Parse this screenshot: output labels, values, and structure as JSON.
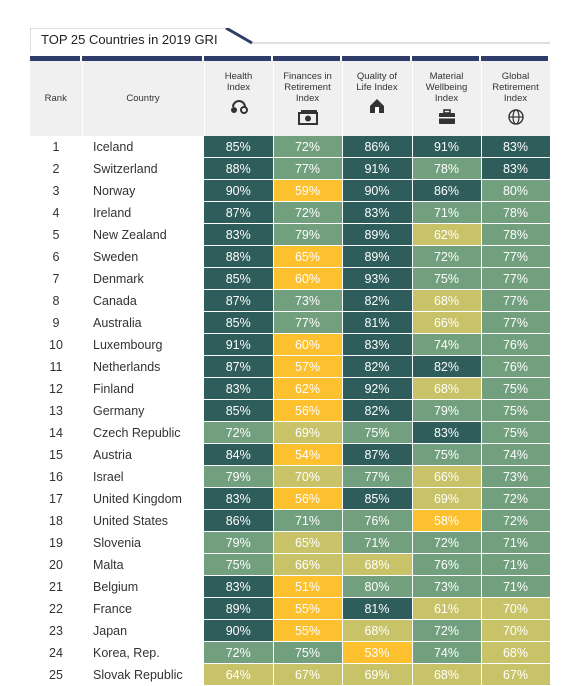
{
  "title": "TOP 25 Countries in 2019 GRI",
  "columns": {
    "rank": "Rank",
    "country": "Country",
    "metrics": [
      {
        "label": [
          "Health",
          "Index"
        ],
        "icon": "health-icon"
      },
      {
        "label": [
          "Finances in",
          "Retirement",
          "Index"
        ],
        "icon": "money-icon"
      },
      {
        "label": [
          "Quality of",
          "Life Index"
        ],
        "icon": "house-icon"
      },
      {
        "label": [
          "Material",
          "Wellbeing",
          "Index"
        ],
        "icon": "briefcase-icon"
      },
      {
        "label": [
          "Global",
          "Retirement",
          "Index"
        ],
        "icon": "globe-icon"
      }
    ]
  },
  "colors": {
    "dark": "#2e5d5b",
    "mid": "#72a07f",
    "olive": "#c8c368",
    "orange": "#fdc02f",
    "header": "#2f3d6a"
  },
  "chart_data": {
    "type": "table",
    "title": "TOP 25 Countries in 2019 GRI",
    "columns": [
      "Rank",
      "Country",
      "Health Index",
      "Finances in Retirement Index",
      "Quality of Life Index",
      "Material Wellbeing Index",
      "Global Retirement Index"
    ],
    "rows": [
      {
        "rank": "1",
        "country": "Iceland",
        "values": [
          85,
          72,
          86,
          91,
          83
        ],
        "levels": [
          "dark",
          "mid",
          "dark",
          "dark",
          "dark"
        ]
      },
      {
        "rank": "2",
        "country": "Switzerland",
        "values": [
          88,
          77,
          91,
          78,
          83
        ],
        "levels": [
          "dark",
          "mid",
          "dark",
          "mid",
          "dark"
        ]
      },
      {
        "rank": "3",
        "country": "Norway",
        "values": [
          90,
          59,
          90,
          86,
          80
        ],
        "levels": [
          "dark",
          "orange",
          "dark",
          "dark",
          "mid"
        ]
      },
      {
        "rank": "4",
        "country": "Ireland",
        "values": [
          87,
          72,
          83,
          71,
          78
        ],
        "levels": [
          "dark",
          "mid",
          "dark",
          "mid",
          "mid"
        ]
      },
      {
        "rank": "5",
        "country": "New Zealand",
        "values": [
          83,
          79,
          89,
          62,
          78
        ],
        "levels": [
          "dark",
          "mid",
          "dark",
          "olive",
          "mid"
        ]
      },
      {
        "rank": "6",
        "country": "Sweden",
        "values": [
          88,
          65,
          89,
          72,
          77
        ],
        "levels": [
          "dark",
          "orange",
          "dark",
          "mid",
          "mid"
        ]
      },
      {
        "rank": "7",
        "country": "Denmark",
        "values": [
          85,
          60,
          93,
          75,
          77
        ],
        "levels": [
          "dark",
          "orange",
          "dark",
          "mid",
          "mid"
        ]
      },
      {
        "rank": "8",
        "country": "Canada",
        "values": [
          87,
          73,
          82,
          68,
          77
        ],
        "levels": [
          "dark",
          "mid",
          "dark",
          "olive",
          "mid"
        ]
      },
      {
        "rank": "9",
        "country": "Australia",
        "values": [
          85,
          77,
          81,
          66,
          77
        ],
        "levels": [
          "dark",
          "mid",
          "dark",
          "olive",
          "mid"
        ]
      },
      {
        "rank": "10",
        "country": "Luxembourg",
        "values": [
          91,
          60,
          83,
          74,
          76
        ],
        "levels": [
          "dark",
          "orange",
          "dark",
          "mid",
          "mid"
        ]
      },
      {
        "rank": "11",
        "country": "Netherlands",
        "values": [
          87,
          57,
          82,
          82,
          76
        ],
        "levels": [
          "dark",
          "orange",
          "dark",
          "dark",
          "mid"
        ]
      },
      {
        "rank": "12",
        "country": "Finland",
        "values": [
          83,
          62,
          92,
          68,
          75
        ],
        "levels": [
          "dark",
          "orange",
          "dark",
          "olive",
          "mid"
        ]
      },
      {
        "rank": "13",
        "country": "Germany",
        "values": [
          85,
          56,
          82,
          79,
          75
        ],
        "levels": [
          "dark",
          "orange",
          "dark",
          "mid",
          "mid"
        ]
      },
      {
        "rank": "14",
        "country": "Czech Republic",
        "values": [
          72,
          69,
          75,
          83,
          75
        ],
        "levels": [
          "mid",
          "olive",
          "mid",
          "dark",
          "mid"
        ]
      },
      {
        "rank": "15",
        "country": "Austria",
        "values": [
          84,
          54,
          87,
          75,
          74
        ],
        "levels": [
          "dark",
          "orange",
          "dark",
          "mid",
          "mid"
        ]
      },
      {
        "rank": "16",
        "country": "Israel",
        "values": [
          79,
          70,
          77,
          66,
          73
        ],
        "levels": [
          "mid",
          "olive",
          "mid",
          "olive",
          "mid"
        ]
      },
      {
        "rank": "17",
        "country": "United Kingdom",
        "values": [
          83,
          56,
          85,
          69,
          72
        ],
        "levels": [
          "dark",
          "orange",
          "dark",
          "olive",
          "mid"
        ]
      },
      {
        "rank": "18",
        "country": "United States",
        "values": [
          86,
          71,
          76,
          58,
          72
        ],
        "levels": [
          "dark",
          "mid",
          "mid",
          "orange",
          "mid"
        ]
      },
      {
        "rank": "19",
        "country": "Slovenia",
        "values": [
          79,
          65,
          71,
          72,
          71
        ],
        "levels": [
          "mid",
          "olive",
          "mid",
          "mid",
          "mid"
        ]
      },
      {
        "rank": "20",
        "country": "Malta",
        "values": [
          75,
          66,
          68,
          76,
          71
        ],
        "levels": [
          "mid",
          "olive",
          "olive",
          "mid",
          "mid"
        ]
      },
      {
        "rank": "21",
        "country": "Belgium",
        "values": [
          83,
          51,
          80,
          73,
          71
        ],
        "levels": [
          "dark",
          "orange",
          "mid",
          "mid",
          "mid"
        ]
      },
      {
        "rank": "22",
        "country": "France",
        "values": [
          89,
          55,
          81,
          61,
          70
        ],
        "levels": [
          "dark",
          "orange",
          "dark",
          "olive",
          "olive"
        ]
      },
      {
        "rank": "23",
        "country": "Japan",
        "values": [
          90,
          55,
          68,
          72,
          70
        ],
        "levels": [
          "dark",
          "orange",
          "olive",
          "mid",
          "olive"
        ]
      },
      {
        "rank": "24",
        "country": "Korea, Rep.",
        "values": [
          72,
          75,
          53,
          74,
          68
        ],
        "levels": [
          "mid",
          "mid",
          "orange",
          "mid",
          "olive"
        ]
      },
      {
        "rank": "25",
        "country": "Slovak Republic",
        "values": [
          64,
          67,
          69,
          68,
          67
        ],
        "levels": [
          "olive",
          "olive",
          "olive",
          "olive",
          "olive"
        ]
      }
    ]
  }
}
